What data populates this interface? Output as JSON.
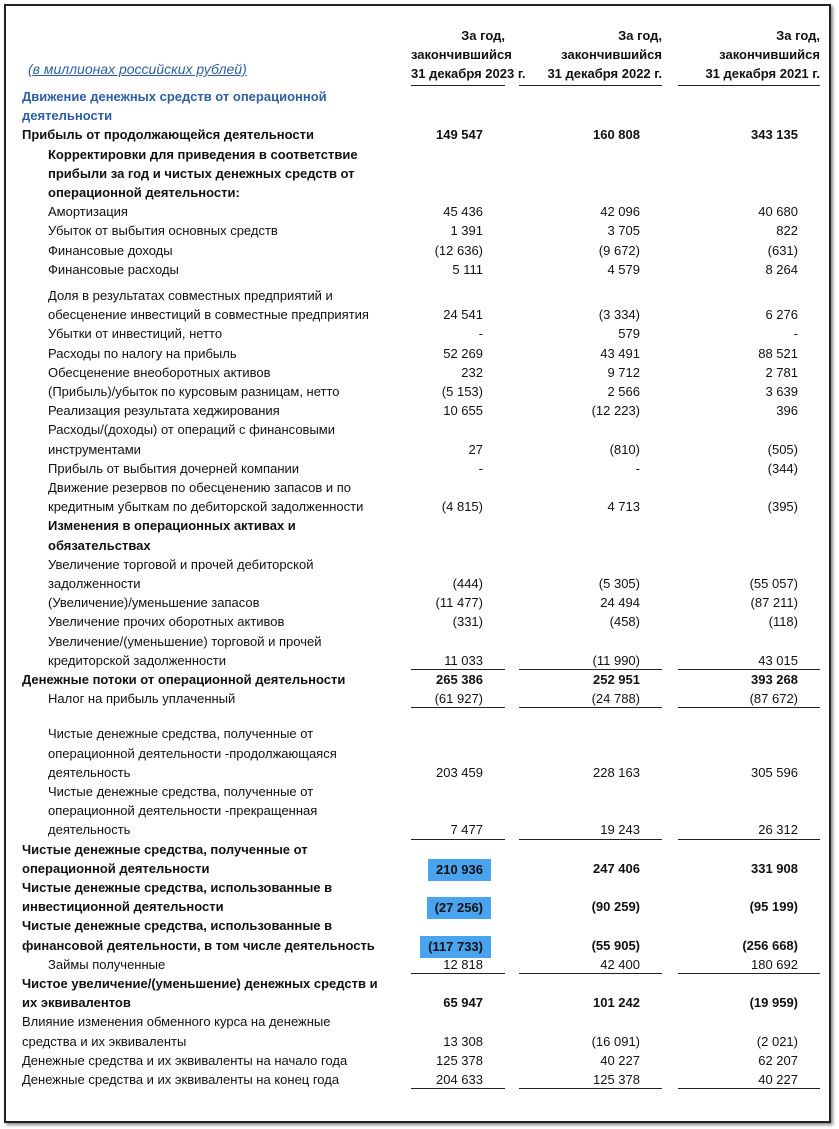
{
  "header": {
    "unit": "(в миллионах российских рублей)",
    "columns": [
      [
        "За год,",
        "закончившийся",
        "31 декабря 2023 г."
      ],
      [
        "За год,",
        "закончившийся",
        "31 декабря 2022 г."
      ],
      [
        "За год,",
        "закончившийся",
        "31 декабря 2021 г."
      ]
    ]
  },
  "table": {
    "rows": [
      {
        "label": [
          "Движение денежных средств от операционной",
          "деятельности"
        ]
      },
      {
        "label": [
          "Прибыль от продолжающейся деятельности"
        ],
        "values": [
          "149 547",
          "160 808",
          "343 135"
        ]
      },
      {
        "label": [
          "Корректировки для приведения в соответствие",
          "прибыли за год и чистых денежных средств от",
          "операционной деятельности:"
        ]
      },
      {
        "label": [
          "Амортизация"
        ],
        "values": [
          "45 436",
          "42 096",
          "40 680"
        ]
      },
      {
        "label": [
          "Убыток от выбытия основных средств"
        ],
        "values": [
          "1 391",
          "3 705",
          "822"
        ]
      },
      {
        "label": [
          "Финансовые доходы"
        ],
        "values": [
          "(12 636)",
          "(9 672)",
          "(631)"
        ]
      },
      {
        "label": [
          "Финансовые расходы"
        ],
        "values": [
          "5 111",
          "4 579",
          "8 264"
        ]
      },
      {
        "label": [
          "Доля в результатах совместных предприятий и",
          "обесценение инвестиций в совместные предприятия"
        ],
        "values": [
          "24 541",
          "(3 334)",
          "6 276"
        ]
      },
      {
        "label": [
          "Убытки от инвестиций, нетто"
        ],
        "values": [
          "-",
          "579",
          "-"
        ]
      },
      {
        "label": [
          "Расходы по налогу на прибыль"
        ],
        "values": [
          "52 269",
          "43 491",
          "88 521"
        ]
      },
      {
        "label": [
          "Обесценение внеоборотных активов"
        ],
        "values": [
          "232",
          "9 712",
          "2 781"
        ]
      },
      {
        "label": [
          "(Прибыль)/убыток по курсовым разницам, нетто"
        ],
        "values": [
          "(5 153)",
          "2 566",
          "3 639"
        ]
      },
      {
        "label": [
          "Реализация результата хеджирования"
        ],
        "values": [
          "10 655",
          "(12 223)",
          "396"
        ]
      },
      {
        "label": [
          "Расходы/(доходы) от операций с финансовыми",
          "инструментами"
        ],
        "values": [
          "27",
          "(810)",
          "(505)"
        ]
      },
      {
        "label": [
          "Прибыль от выбытия дочерней компании"
        ],
        "values": [
          "-",
          "-",
          "(344)"
        ]
      },
      {
        "label": [
          "Движение резервов по обесценению запасов и по",
          "кредитным убыткам по дебиторской задолженности"
        ],
        "values": [
          "(4 815)",
          "4 713",
          "(395)"
        ]
      },
      {
        "label": [
          "Изменения в операционных активах и",
          "обязательствах"
        ]
      },
      {
        "label": [
          "Увеличение торговой и прочей дебиторской",
          "задолженности"
        ],
        "values": [
          "(444)",
          "(5 305)",
          "(55 057)"
        ]
      },
      {
        "label": [
          "(Увеличение)/уменьшение запасов"
        ],
        "values": [
          "(11 477)",
          "24 494",
          "(87 211)"
        ]
      },
      {
        "label": [
          "Увеличение прочих оборотных активов"
        ],
        "values": [
          "(331)",
          "(458)",
          "(118)"
        ]
      },
      {
        "label": [
          "Увеличение/(уменьшение) торговой и прочей",
          "кредиторской задолженности"
        ],
        "values": [
          "11 033",
          "(11 990)",
          "43 015"
        ]
      },
      {
        "label": [
          "Денежные потоки от операционной деятельности"
        ],
        "values": [
          "265 386",
          "252 951",
          "393 268"
        ]
      },
      {
        "label": [
          "Налог на прибыль уплаченный"
        ],
        "values": [
          "(61 927)",
          "(24 788)",
          "(87 672)"
        ]
      },
      {
        "label": [
          "Чистые денежные средства, полученные от",
          "операционной деятельности -продолжающаяся",
          "деятельность"
        ],
        "values": [
          "203 459",
          "228 163",
          "305 596"
        ]
      },
      {
        "label": [
          "Чистые денежные средства, полученные от",
          "операционной деятельности -прекращенная",
          "деятельность"
        ],
        "values": [
          "7 477",
          "19 243",
          "26 312"
        ]
      },
      {
        "label": [
          "Чистые денежные средства, полученные от",
          "операционной деятельности"
        ],
        "values": [
          "210 936",
          "247 406",
          "331 908"
        ]
      },
      {
        "label": [
          "Чистые денежные средства, использованные в",
          "инвестиционной деятельности"
        ],
        "values": [
          "(27 256)",
          "(90 259)",
          "(95 199)"
        ]
      },
      {
        "label": [
          "Чистые денежные средства, использованные в",
          "финансовой деятельности, в том числе деятельность"
        ],
        "values": [
          "(117 733)",
          "(55 905)",
          "(256 668)"
        ]
      },
      {
        "label": [
          "Займы полученные"
        ],
        "values": [
          "12 818",
          "42 400",
          "180 692"
        ]
      },
      {
        "label": [
          "Чистое увеличение/(уменьшение) денежных средств и",
          "их эквивалентов"
        ],
        "values": [
          "65 947",
          "101 242",
          "(19 959)"
        ]
      },
      {
        "label": [
          "Влияние изменения обменного курса на денежные",
          "средства и их эквиваленты"
        ],
        "values": [
          "13 308",
          "(16 091)",
          "(2 021)"
        ]
      },
      {
        "label": [
          "Денежные средства и их эквиваленты на начало года"
        ],
        "values": [
          "125 378",
          "40 227",
          "62 207"
        ]
      },
      {
        "label": [
          "Денежные средства и их эквиваленты на конец года"
        ],
        "values": [
          "204 633",
          "125 378",
          "40 227"
        ]
      }
    ]
  }
}
